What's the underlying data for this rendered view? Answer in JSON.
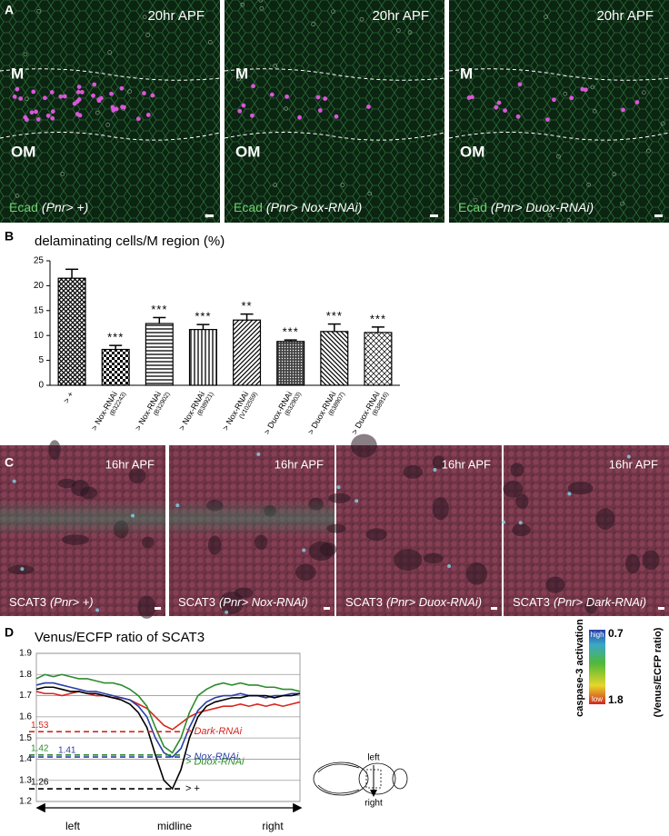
{
  "panel_a": {
    "label": "A",
    "images": [
      {
        "time": "20hr APF",
        "upper": "M",
        "lower": "OM",
        "stain": "Ecad",
        "genotype": "(Pnr> +)"
      },
      {
        "time": "20hr APF",
        "upper": "M",
        "lower": "OM",
        "stain": "Ecad",
        "genotype": "(Pnr> Nox-RNAi)"
      },
      {
        "time": "20hr APF",
        "upper": "M",
        "lower": "OM",
        "stain": "Ecad",
        "genotype": "(Pnr> Duox-RNAi)"
      }
    ]
  },
  "panel_c": {
    "label": "C",
    "images": [
      {
        "time": "16hr APF",
        "stain": "SCAT3",
        "genotype": "(Pnr> +)"
      },
      {
        "time": "16hr APF",
        "stain": "SCAT3",
        "genotype": "(Pnr> Nox-RNAi)"
      },
      {
        "time": "16hr APF",
        "stain": "SCAT3",
        "genotype": "(Pnr> Duox-RNAi)"
      },
      {
        "time": "16hr APF",
        "stain": "SCAT3",
        "genotype": "(Pnr> Dark-RNAi)"
      }
    ]
  },
  "chart_data": [
    {
      "type": "bar",
      "panel_label": "B",
      "title": "delaminating cells/M region (%)",
      "categories": [
        "> +",
        "> Nox-RNAi",
        "> Nox-RNAi",
        "> Nox-RNAi",
        "> Nox-RNAi",
        "> Duox-RNAi",
        "> Duox-RNAi",
        "> Duox-RNAi"
      ],
      "category_ids": [
        null,
        "(B32243)",
        "(B32902)",
        "(B38921)",
        "(V102559)",
        "(B32903)",
        "(B38907)",
        "(B38916)"
      ],
      "values": [
        21.5,
        7.2,
        12.4,
        11.2,
        13.1,
        8.8,
        10.8,
        10.6
      ],
      "errors": [
        1.8,
        0.8,
        1.2,
        1.0,
        1.2,
        0.3,
        1.5,
        1.1
      ],
      "significance": [
        null,
        "***",
        "***",
        "***",
        "**",
        "***",
        "***",
        "***"
      ],
      "color": "#000000",
      "ylim": [
        0,
        25
      ],
      "yticks": [
        0,
        5,
        10,
        15,
        20,
        25
      ]
    },
    {
      "type": "line",
      "panel_label": "D",
      "title": "Venus/ECFP ratio of SCAT3",
      "x_labels": [
        "left",
        "midline",
        "right"
      ],
      "ylim": [
        1.2,
        1.9
      ],
      "yticks": [
        1.2,
        1.3,
        1.4,
        1.5,
        1.6,
        1.7,
        1.8,
        1.9
      ],
      "grid": true,
      "series": [
        {
          "name": "> Dark-RNAi",
          "color": "#d7261e",
          "min": 1.53,
          "values": [
            1.72,
            1.71,
            1.71,
            1.7,
            1.71,
            1.72,
            1.71,
            1.7,
            1.7,
            1.69,
            1.69,
            1.68,
            1.66,
            1.64,
            1.6,
            1.56,
            1.54,
            1.57,
            1.6,
            1.62,
            1.63,
            1.64,
            1.65,
            1.65,
            1.66,
            1.65,
            1.66,
            1.65,
            1.66,
            1.65,
            1.66,
            1.67
          ]
        },
        {
          "name": "> Duox-RNAi",
          "color": "#2e8b2e",
          "min": 1.42,
          "values": [
            1.78,
            1.8,
            1.79,
            1.8,
            1.79,
            1.78,
            1.78,
            1.77,
            1.76,
            1.76,
            1.75,
            1.73,
            1.7,
            1.65,
            1.55,
            1.46,
            1.43,
            1.5,
            1.62,
            1.7,
            1.73,
            1.75,
            1.76,
            1.75,
            1.76,
            1.75,
            1.75,
            1.74,
            1.74,
            1.73,
            1.73,
            1.72
          ]
        },
        {
          "name": "> Nox-RNAi",
          "color": "#2b3fa8",
          "min": 1.41,
          "values": [
            1.75,
            1.76,
            1.76,
            1.75,
            1.74,
            1.73,
            1.72,
            1.72,
            1.71,
            1.7,
            1.69,
            1.68,
            1.65,
            1.6,
            1.5,
            1.43,
            1.41,
            1.45,
            1.55,
            1.63,
            1.67,
            1.69,
            1.7,
            1.7,
            1.71,
            1.7,
            1.7,
            1.69,
            1.7,
            1.7,
            1.71,
            1.71
          ]
        },
        {
          "name": "> +",
          "color": "#000000",
          "min": 1.26,
          "values": [
            1.73,
            1.74,
            1.74,
            1.73,
            1.72,
            1.72,
            1.71,
            1.71,
            1.7,
            1.69,
            1.68,
            1.66,
            1.62,
            1.55,
            1.42,
            1.3,
            1.26,
            1.35,
            1.5,
            1.6,
            1.65,
            1.67,
            1.68,
            1.69,
            1.69,
            1.7,
            1.7,
            1.7,
            1.69,
            1.7,
            1.7,
            1.71
          ]
        }
      ],
      "colorbar": {
        "title": "caspase-3 activation",
        "subtitle": "(Venus/ECFP ratio)",
        "high": "high",
        "low": "low",
        "high_value": 0.7,
        "low_value": 1.8
      },
      "diagram": {
        "left": "left",
        "right": "right"
      }
    }
  ]
}
